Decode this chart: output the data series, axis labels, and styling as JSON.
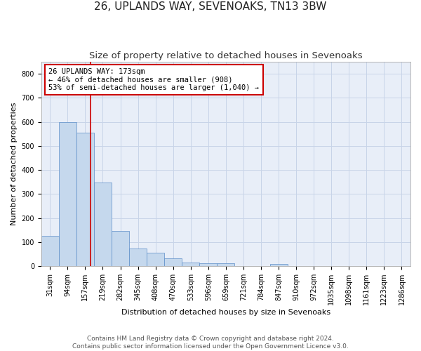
{
  "title": "26, UPLANDS WAY, SEVENOAKS, TN13 3BW",
  "subtitle": "Size of property relative to detached houses in Sevenoaks",
  "xlabel": "Distribution of detached houses by size in Sevenoaks",
  "ylabel": "Number of detached properties",
  "categories": [
    "31sqm",
    "94sqm",
    "157sqm",
    "219sqm",
    "282sqm",
    "345sqm",
    "408sqm",
    "470sqm",
    "533sqm",
    "596sqm",
    "659sqm",
    "721sqm",
    "784sqm",
    "847sqm",
    "910sqm",
    "972sqm",
    "1035sqm",
    "1098sqm",
    "1161sqm",
    "1223sqm",
    "1286sqm"
  ],
  "values": [
    125,
    600,
    555,
    348,
    148,
    75,
    55,
    33,
    15,
    12,
    12,
    0,
    0,
    8,
    0,
    0,
    0,
    0,
    0,
    0,
    0
  ],
  "bar_color": "#c5d8ed",
  "bar_edge_color": "#5b8dc8",
  "grid_color": "#c8d4e8",
  "background_color": "#e8eef8",
  "property_line_color": "#cc0000",
  "property_line_x": 2.3,
  "annotation_text": "26 UPLANDS WAY: 173sqm\n← 46% of detached houses are smaller (908)\n53% of semi-detached houses are larger (1,040) →",
  "annotation_box_color": "#ffffff",
  "annotation_box_edge_color": "#cc0000",
  "ylim": [
    0,
    850
  ],
  "yticks": [
    0,
    100,
    200,
    300,
    400,
    500,
    600,
    700,
    800
  ],
  "footer": "Contains HM Land Registry data © Crown copyright and database right 2024.\nContains public sector information licensed under the Open Government Licence v3.0.",
  "title_fontsize": 11,
  "subtitle_fontsize": 9.5,
  "axis_label_fontsize": 8,
  "tick_fontsize": 7,
  "annotation_fontsize": 7.5,
  "footer_fontsize": 6.5
}
